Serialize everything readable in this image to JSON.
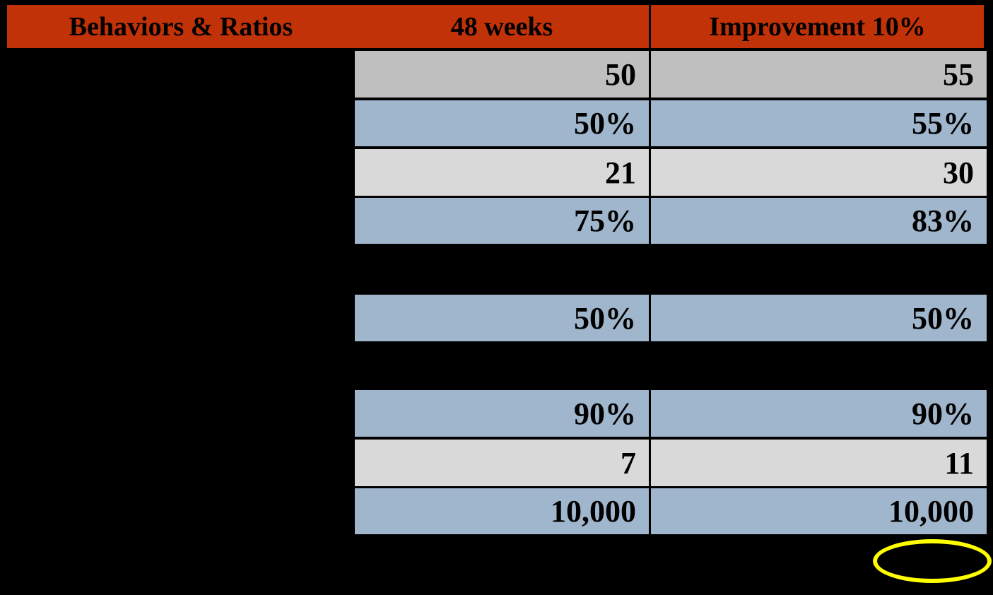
{
  "colors": {
    "background": "#000000",
    "header_bg": "#C23208",
    "row_gray": "#BFBFBF",
    "row_blue": "#A0B6CC",
    "row_lightgray": "#D9D9D9",
    "text": "#000000",
    "highlight_yellow": "#FFFF00"
  },
  "table": {
    "header": {
      "col1": "Behaviors & Ratios",
      "col2": "48 weeks",
      "col3": "Improvement 10%"
    },
    "rows": [
      {
        "week48": "50",
        "improvement": "55",
        "tone": "row_gray",
        "improvement_circled": true
      },
      {
        "week48": "50%",
        "improvement": "55%",
        "tone": "row_blue",
        "improvement_circled": true
      },
      {
        "week48": "21",
        "improvement": "30",
        "tone": "row_lightgray",
        "improvement_circled": false
      },
      {
        "week48": "75%",
        "improvement": "83%",
        "tone": "row_blue",
        "improvement_circled": true
      },
      {
        "week48": "50%",
        "improvement": "50%",
        "tone": "row_blue",
        "improvement_circled": false
      },
      {
        "week48": "90%",
        "improvement": "90%",
        "tone": "row_blue",
        "improvement_circled": false
      },
      {
        "week48": "7",
        "improvement": "11",
        "tone": "row_lightgray",
        "improvement_circled": false
      },
      {
        "week48": "10,000",
        "improvement": "10,000",
        "tone": "row_blue",
        "improvement_circled": false
      }
    ]
  },
  "annotations": {
    "highlight_ellipses": [
      {
        "target": "improvement value 55, row 1"
      },
      {
        "target": "improvement value 55%, row 2"
      },
      {
        "target": "improvement value 83%, row 4"
      },
      {
        "target": "empty area below improvement column, bottom right"
      }
    ]
  }
}
